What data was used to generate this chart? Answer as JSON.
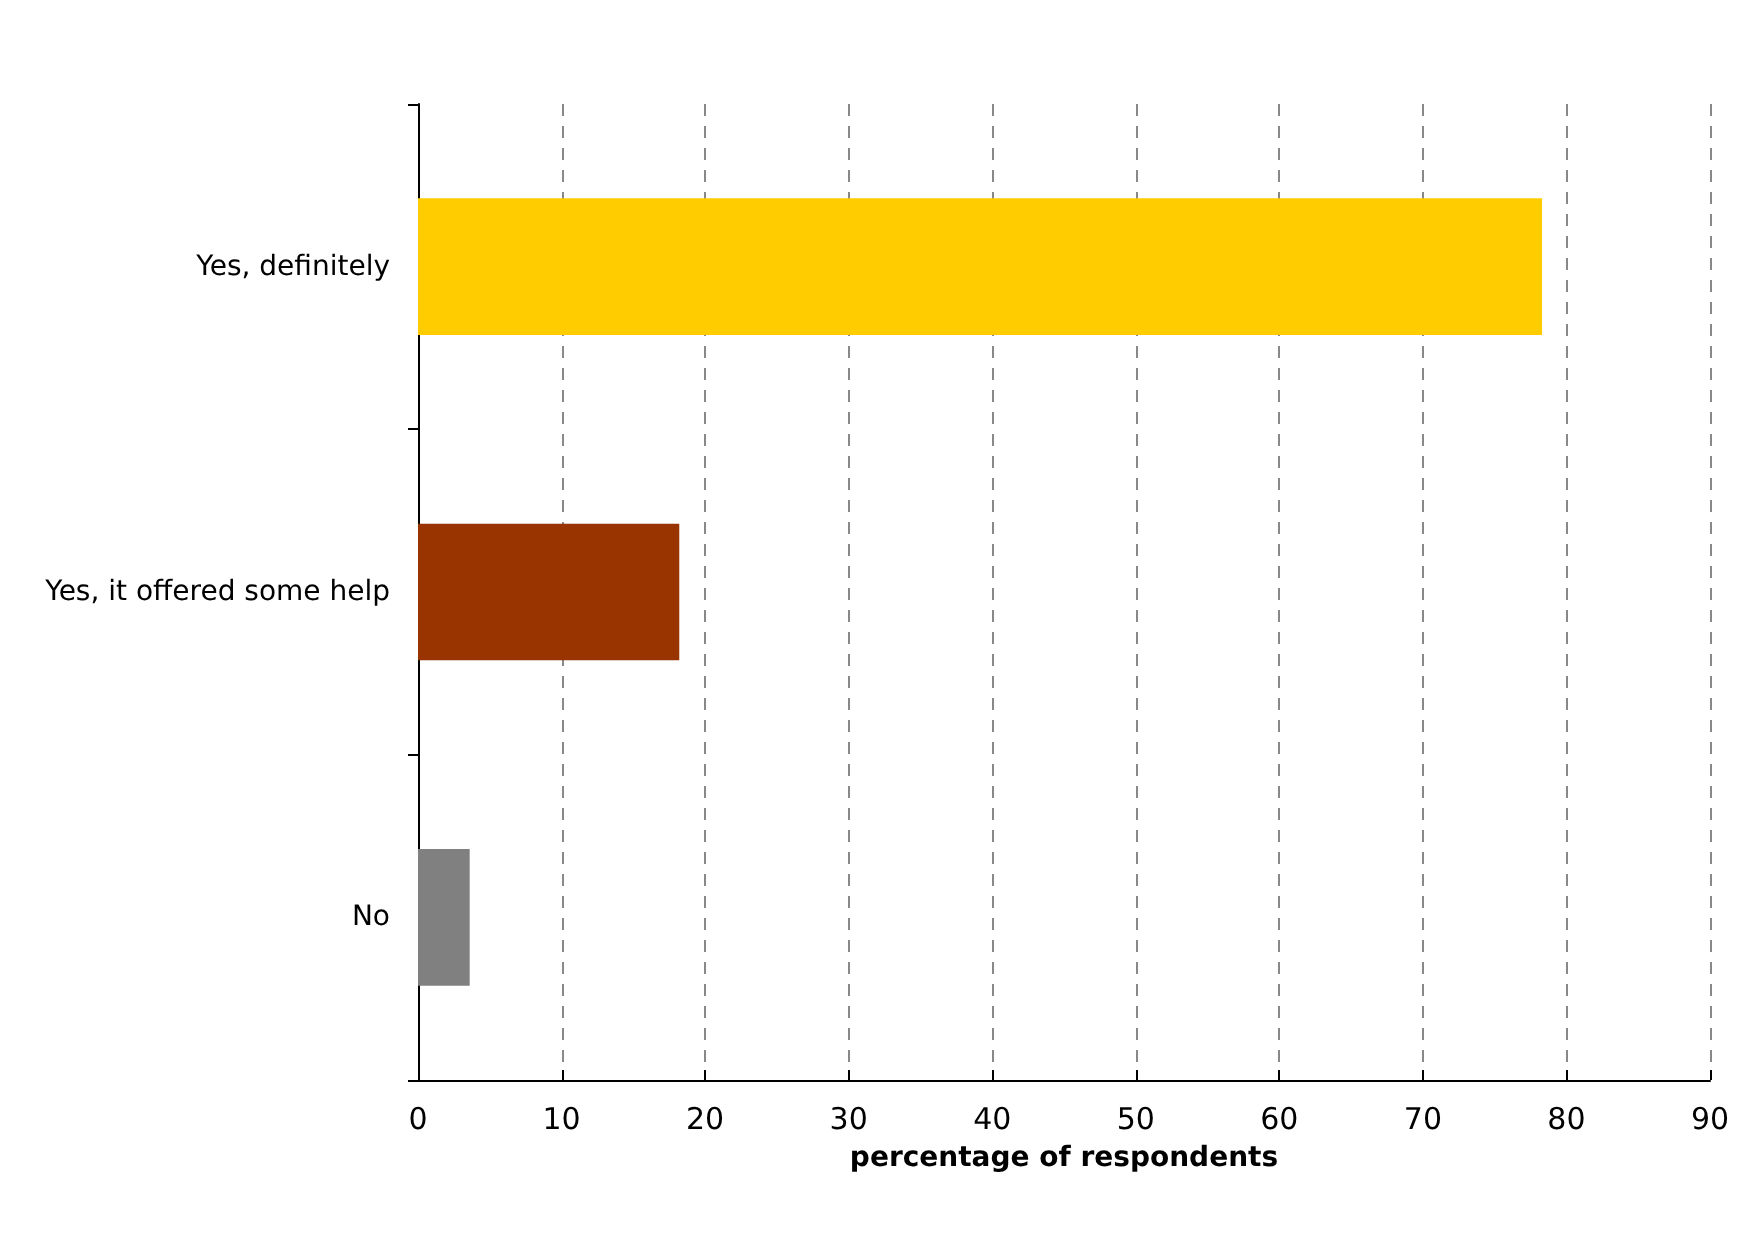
{
  "chart_data": {
    "type": "bar",
    "orientation": "horizontal",
    "xlabel": "percentage of respondents",
    "categories": [
      "Yes, definitely",
      "Yes, it offered some help",
      "No"
    ],
    "values": [
      78.3,
      18.2,
      3.6
    ],
    "colors": [
      "#ffcc00",
      "#993300",
      "#808080"
    ],
    "xlim": [
      0,
      90
    ],
    "xticks": [
      0,
      10,
      20,
      30,
      40,
      50,
      60,
      70,
      80,
      90
    ],
    "grid": "x"
  }
}
